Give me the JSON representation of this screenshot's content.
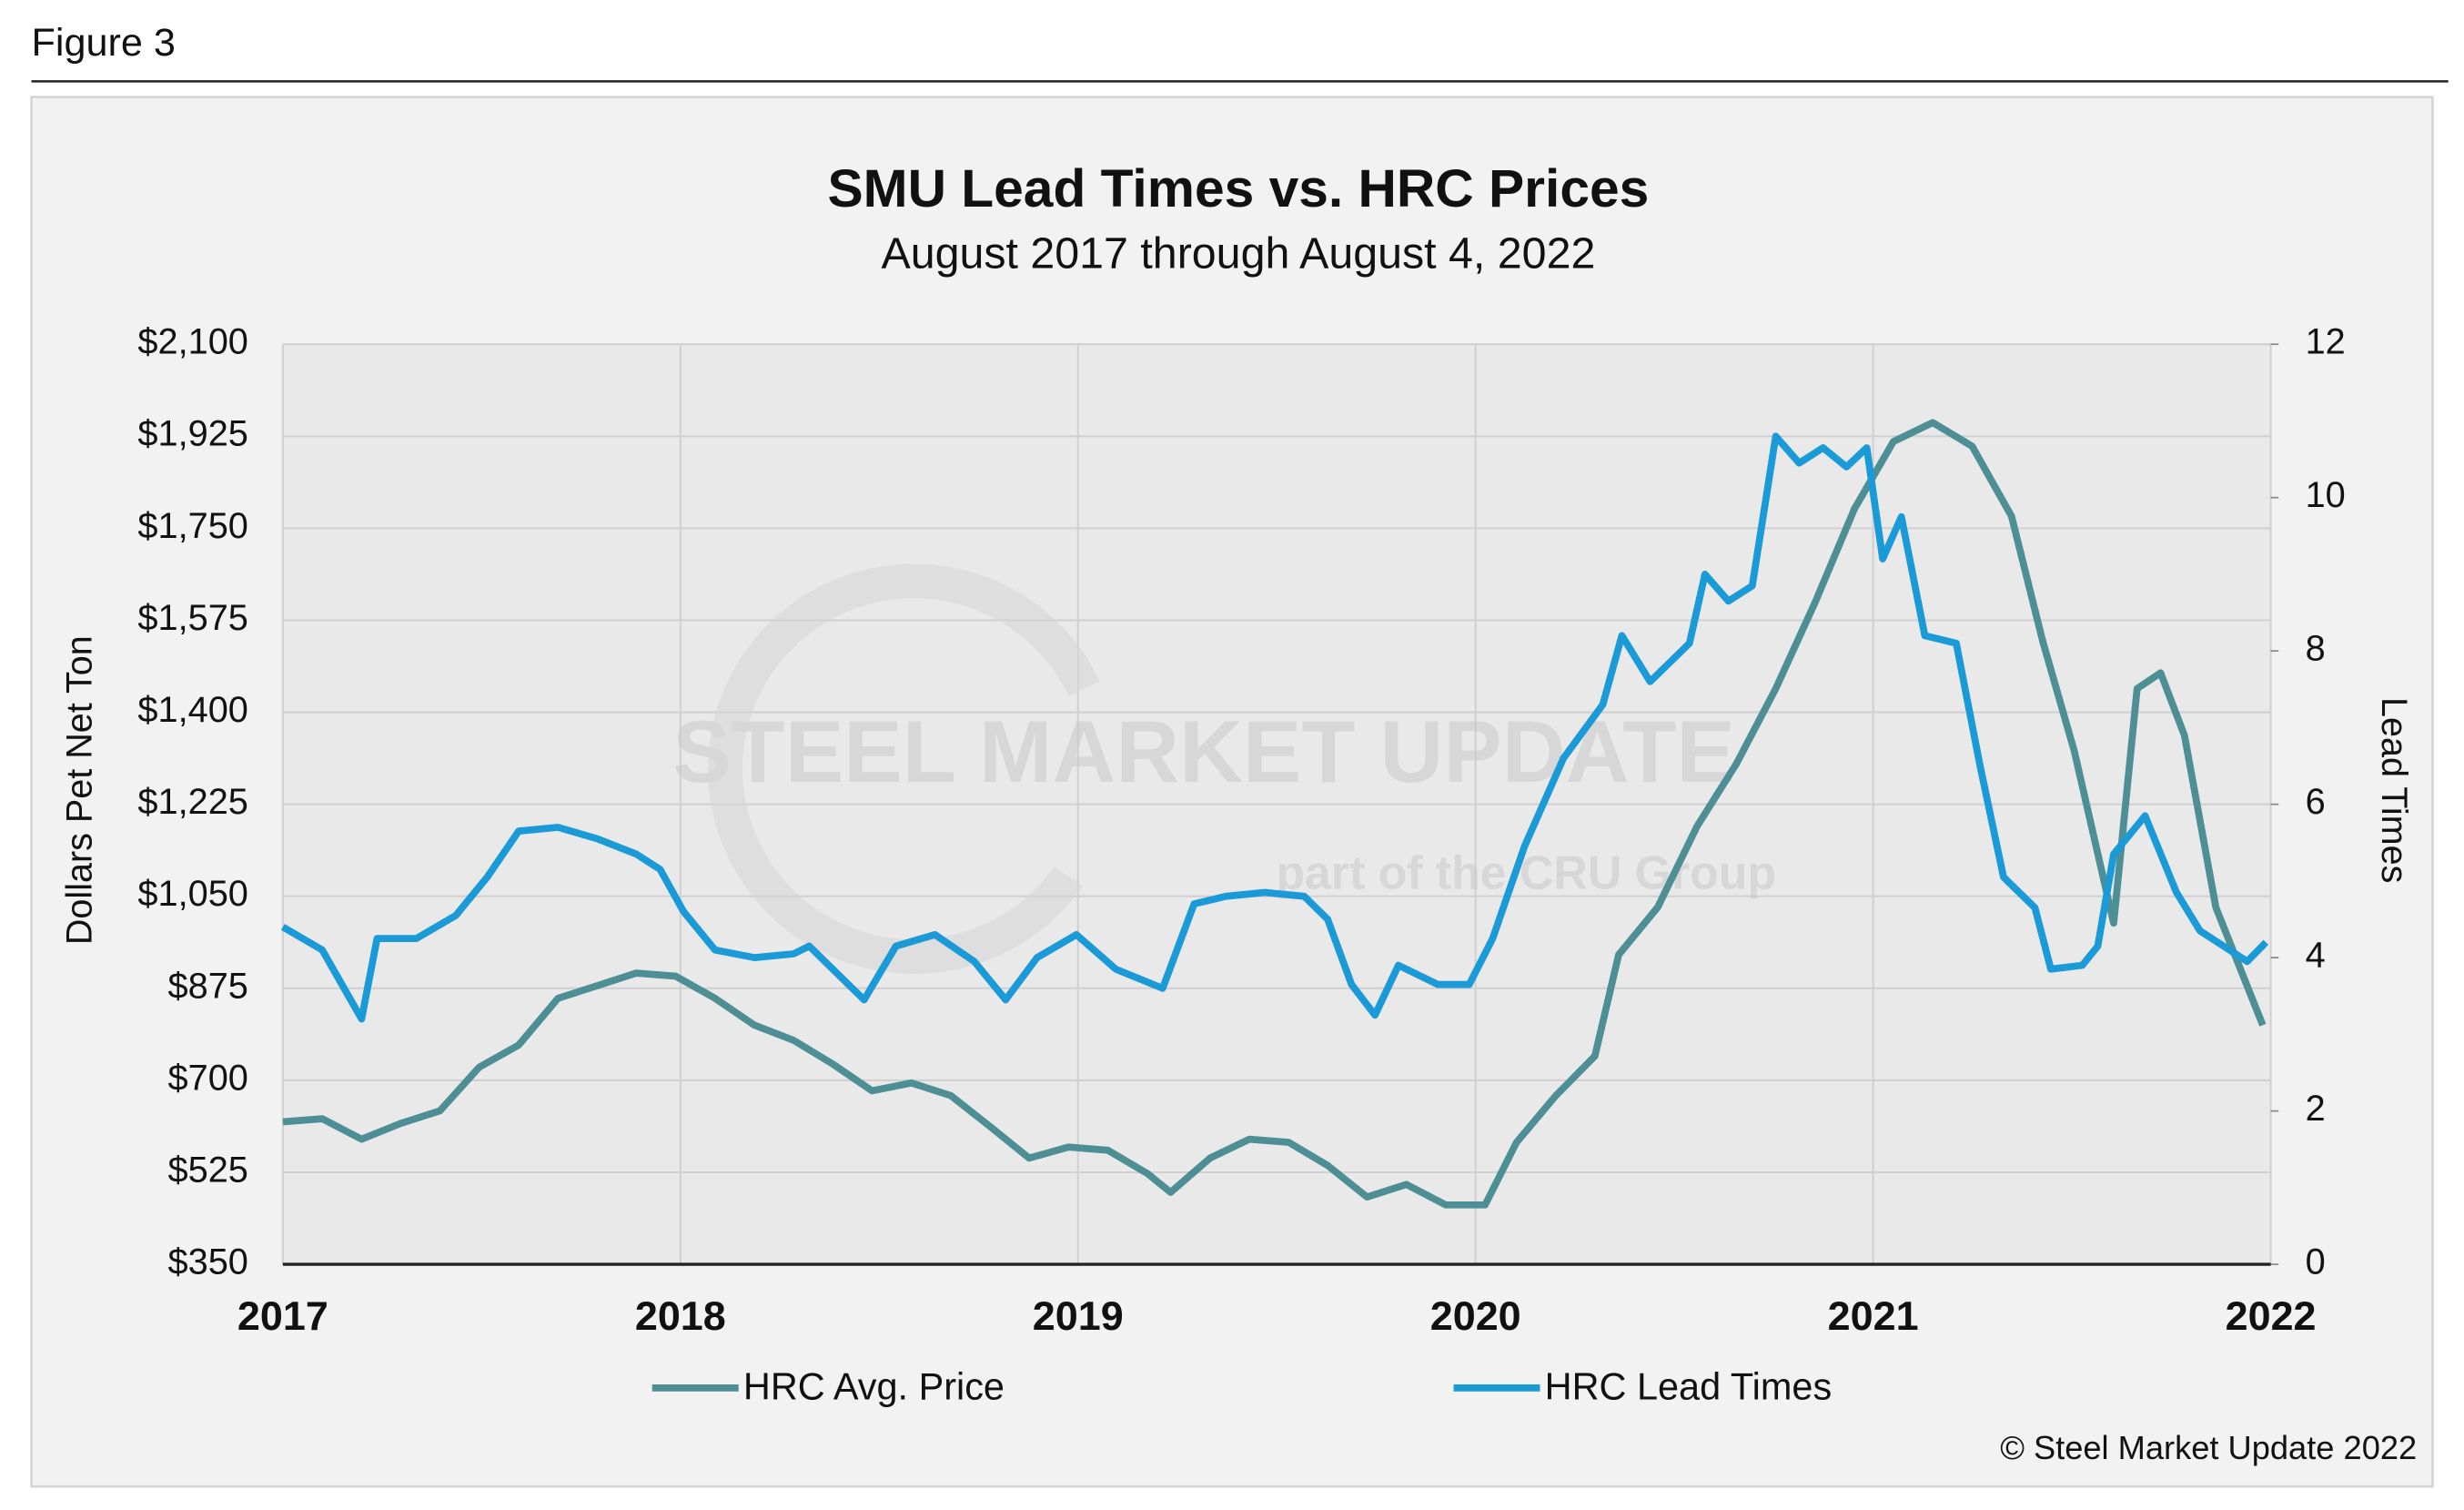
{
  "figure_label": "Figure 3",
  "copyright": "© Steel Market Update 2022",
  "watermark": {
    "brand": "STEEL MARKET UPDATE",
    "tagline": "part of the CRU Group"
  },
  "chart_data": {
    "type": "line",
    "title": "SMU Lead Times vs. HRC Prices",
    "subtitle": "August 2017 through August 4, 2022",
    "ylabel": "Dollars Pet Net Ton",
    "y2label": "Lead Times",
    "xlim": [
      2017,
      2022
    ],
    "xticks": [
      2017,
      2018,
      2019,
      2020,
      2021,
      2022
    ],
    "ylim": [
      350,
      2100
    ],
    "yticks": [
      {
        "value": 350,
        "label": "$350"
      },
      {
        "value": 525,
        "label": "$525"
      },
      {
        "value": 700,
        "label": "$700"
      },
      {
        "value": 875,
        "label": "$875"
      },
      {
        "value": 1050,
        "label": "$1,050"
      },
      {
        "value": 1225,
        "label": "$1,225"
      },
      {
        "value": 1400,
        "label": "$1,400"
      },
      {
        "value": 1575,
        "label": "$1,575"
      },
      {
        "value": 1750,
        "label": "$1,750"
      },
      {
        "value": 1925,
        "label": "$1,925"
      },
      {
        "value": 2100,
        "label": "$2,100"
      }
    ],
    "y2lim": [
      0,
      12
    ],
    "y2ticks": [
      0,
      2,
      4,
      6,
      8,
      10,
      12
    ],
    "grid": true,
    "legend": "bottom",
    "series": [
      {
        "name": "HRC Avg. Price",
        "color": "#4e8f96",
        "axis": "y",
        "x": [
          2017.0,
          2017.099,
          2017.198,
          2017.296,
          2017.395,
          2017.494,
          2017.593,
          2017.692,
          2017.791,
          2017.889,
          2017.988,
          2018.087,
          2018.186,
          2018.285,
          2018.383,
          2018.482,
          2018.581,
          2018.68,
          2018.779,
          2018.877,
          2018.976,
          2019.075,
          2019.174,
          2019.233,
          2019.332,
          2019.431,
          2019.53,
          2019.628,
          2019.727,
          2019.826,
          2019.925,
          2020.024,
          2020.103,
          2020.202,
          2020.3,
          2020.36,
          2020.458,
          2020.557,
          2020.656,
          2020.755,
          2020.854,
          2020.953,
          2021.051,
          2021.15,
          2021.249,
          2021.348,
          2021.427,
          2021.506,
          2021.605,
          2021.664,
          2021.723,
          2021.783,
          2021.862,
          2021.98
        ],
        "values": [
          621,
          627,
          588,
          618,
          642,
          725,
          767,
          856,
          880,
          904,
          898,
          856,
          805,
          776,
          731,
          680,
          695,
          671,
          612,
          552,
          573,
          567,
          523,
          487,
          552,
          588,
          582,
          538,
          478,
          502,
          463,
          463,
          582,
          671,
          746,
          939,
          1029,
          1183,
          1302,
          1445,
          1609,
          1787,
          1915,
          1951,
          1906,
          1773,
          1534,
          1326,
          999,
          1445,
          1475,
          1356,
          1029,
          805
        ]
      },
      {
        "name": "HRC Lead Times",
        "color": "#1a9ad6",
        "axis": "y2",
        "x": [
          2017.0,
          2017.099,
          2017.198,
          2017.237,
          2017.336,
          2017.435,
          2017.514,
          2017.593,
          2017.692,
          2017.791,
          2017.889,
          2017.949,
          2018.008,
          2018.087,
          2018.186,
          2018.285,
          2018.324,
          2018.383,
          2018.462,
          2018.542,
          2018.64,
          2018.739,
          2018.818,
          2018.897,
          2018.996,
          2019.095,
          2019.213,
          2019.292,
          2019.372,
          2019.47,
          2019.569,
          2019.628,
          2019.688,
          2019.747,
          2019.806,
          2019.905,
          2019.984,
          2020.043,
          2020.123,
          2020.221,
          2020.32,
          2020.368,
          2020.439,
          2020.538,
          2020.577,
          2020.636,
          2020.696,
          2020.755,
          2020.814,
          2020.874,
          2020.933,
          2020.984,
          2021.024,
          2021.071,
          2021.13,
          2021.209,
          2021.269,
          2021.328,
          2021.407,
          2021.447,
          2021.526,
          2021.565,
          2021.605,
          2021.684,
          2021.763,
          2021.822,
          2021.941,
          2021.988
        ],
        "values": [
          4.4,
          4.1,
          3.2,
          4.25,
          4.25,
          4.55,
          5.05,
          5.65,
          5.7,
          5.55,
          5.35,
          5.15,
          4.6,
          4.1,
          4.0,
          4.05,
          4.15,
          3.85,
          3.45,
          4.15,
          4.3,
          3.95,
          3.45,
          4.0,
          4.3,
          3.85,
          3.6,
          4.7,
          4.8,
          4.85,
          4.8,
          4.5,
          3.65,
          3.25,
          3.9,
          3.65,
          3.65,
          4.25,
          5.45,
          6.6,
          7.3,
          8.2,
          7.6,
          8.1,
          9.0,
          8.65,
          8.85,
          10.8,
          10.45,
          10.65,
          10.4,
          10.65,
          9.2,
          9.75,
          8.2,
          8.1,
          6.5,
          5.05,
          4.65,
          3.85,
          3.9,
          4.15,
          5.35,
          5.85,
          4.85,
          4.35,
          3.95,
          4.2
        ]
      }
    ]
  }
}
